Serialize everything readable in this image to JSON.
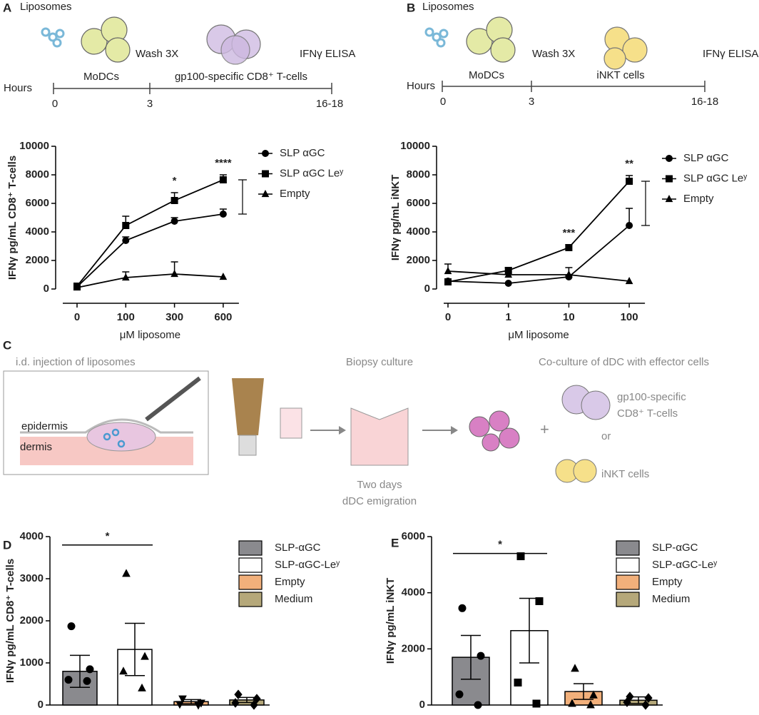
{
  "panels": {
    "a": {
      "label": "A",
      "liposomes": "Liposomes",
      "wash": "Wash 3X",
      "elisa": "IFNγ ELISA",
      "hours": "Hours",
      "phase1": "MoDCs",
      "phase2": "gp100-specific CD8⁺ T-cells",
      "times": [
        "0",
        "3",
        "16-18"
      ]
    },
    "b": {
      "label": "B",
      "liposomes": "Liposomes",
      "wash": "Wash 3X",
      "elisa": "IFNγ ELISA",
      "hours": "Hours",
      "phase1": "MoDCs",
      "phase2": "iNKT cells",
      "times": [
        "0",
        "3",
        "16-18"
      ]
    },
    "c": {
      "label": "C",
      "injection": "i.d. injection of liposomes",
      "epidermis": "epidermis",
      "dermis": "dermis",
      "biopsy": "Biopsy culture",
      "days": "Two days",
      "emigration": "dDC emigration",
      "coculture": "Co-culture of dDC with effector cells",
      "plus": "+",
      "tcell1": "gp100-specific",
      "tcell2": "CD8⁺ T-cells",
      "or": "or",
      "inkt": "iNKT cells"
    },
    "d": {
      "label": "D"
    },
    "e": {
      "label": "E"
    }
  },
  "chart_data": [
    {
      "type": "line",
      "x_label": "μM liposome",
      "y_label": "IFNγ pg/mL CD8⁺ T-cells",
      "categories": [
        "0",
        "100",
        "300",
        "600"
      ],
      "ylim": [
        0,
        10000
      ],
      "yticks": [
        0,
        2000,
        4000,
        6000,
        8000,
        10000
      ],
      "series": [
        {
          "name": "SLP αGC",
          "marker": "circle",
          "color": "#000000",
          "values": [
            150,
            3400,
            4750,
            5250
          ],
          "errors": [
            0,
            250,
            250,
            350
          ]
        },
        {
          "name": "SLP αGC Leʸ",
          "marker": "square",
          "color": "#000000",
          "values": [
            200,
            4450,
            6200,
            7650
          ],
          "errors": [
            0,
            650,
            550,
            350
          ]
        },
        {
          "name": "Empty",
          "marker": "triangle",
          "color": "#000000",
          "values": [
            100,
            800,
            1050,
            850
          ],
          "errors": [
            0,
            400,
            850,
            0
          ]
        }
      ],
      "annotations": [
        {
          "text": "*",
          "x": "300"
        },
        {
          "text": "****",
          "x": "600"
        }
      ]
    },
    {
      "type": "line",
      "x_label": "μM liposome",
      "y_label": "IFNγ pg/mL iNKT",
      "categories": [
        "0",
        "1",
        "10",
        "100"
      ],
      "ylim": [
        0,
        10000
      ],
      "yticks": [
        0,
        2000,
        4000,
        6000,
        8000,
        10000
      ],
      "series": [
        {
          "name": "SLP αGC",
          "marker": "circle",
          "color": "#000000",
          "values": [
            550,
            400,
            850,
            4450
          ],
          "errors": [
            0,
            0,
            100,
            1200
          ]
        },
        {
          "name": "SLP αGC Leʸ",
          "marker": "square",
          "color": "#000000",
          "values": [
            500,
            1300,
            2900,
            7550
          ],
          "errors": [
            200,
            200,
            200,
            400
          ]
        },
        {
          "name": "Empty",
          "marker": "triangle",
          "color": "#000000",
          "values": [
            1250,
            1000,
            1000,
            550
          ],
          "errors": [
            500,
            0,
            500,
            0
          ]
        }
      ],
      "annotations": [
        {
          "text": "***",
          "x": "10"
        },
        {
          "text": "**",
          "x": "100"
        }
      ]
    },
    {
      "type": "dotbar",
      "y_label": "IFNγ pg/mL CD8⁺ T-cells",
      "ylim": [
        0,
        4000
      ],
      "yticks": [
        0,
        1000,
        2000,
        3000,
        4000
      ],
      "significance": {
        "text": "*",
        "y": 3800
      },
      "series": [
        {
          "name": "SLP-αGC",
          "color": "#8a8a8e",
          "marker": "circle",
          "value": 800,
          "error": 380,
          "points": [
            1870,
            850,
            600,
            570
          ]
        },
        {
          "name": "SLP-αGC-Leʸ",
          "color": "#ffffff",
          "marker": "triangle",
          "value": 1320,
          "error": 620,
          "points": [
            3120,
            1150,
            800,
            400
          ]
        },
        {
          "name": "Empty",
          "color": "#f2b07b",
          "marker": "triangle-down",
          "value": 80,
          "error": 50,
          "points": [
            150,
            50,
            20,
            0
          ]
        },
        {
          "name": "Medium",
          "color": "#b5a87a",
          "marker": "diamond",
          "value": 120,
          "error": 60,
          "points": [
            250,
            150,
            50,
            0
          ]
        }
      ]
    },
    {
      "type": "dotbar",
      "y_label": "IFNγ pg/mL iNKT",
      "ylim": [
        0,
        6000
      ],
      "yticks": [
        0,
        2000,
        4000,
        6000
      ],
      "significance": {
        "text": "*",
        "y": 5400
      },
      "series": [
        {
          "name": "SLP-αGC",
          "color": "#8a8a8e",
          "marker": "circle",
          "value": 1700,
          "error": 780,
          "points": [
            3450,
            1750,
            380,
            0
          ]
        },
        {
          "name": "SLP-αGC-Leʸ",
          "color": "#ffffff",
          "marker": "square",
          "value": 2650,
          "error": 1150,
          "points": [
            5300,
            3700,
            800,
            50
          ]
        },
        {
          "name": "Empty",
          "color": "#f2b07b",
          "marker": "triangle",
          "value": 480,
          "error": 280,
          "points": [
            1300,
            350,
            50,
            0
          ]
        },
        {
          "name": "Medium",
          "color": "#b5a87a",
          "marker": "diamond",
          "value": 170,
          "error": 120,
          "points": [
            300,
            250,
            100,
            0
          ]
        }
      ]
    }
  ]
}
